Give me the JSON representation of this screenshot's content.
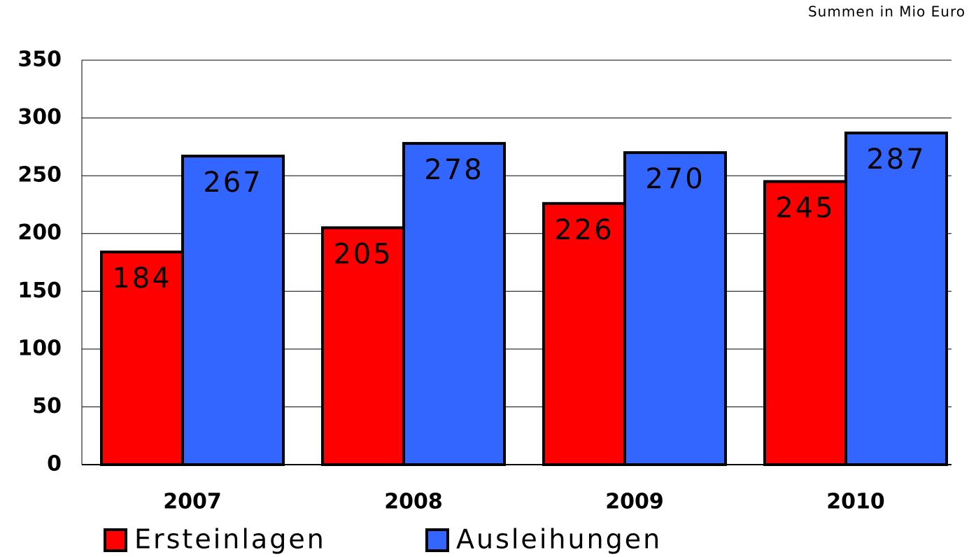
{
  "chart_data": {
    "type": "bar",
    "subtitle": "Summen in Mio Euro",
    "categories": [
      "2007",
      "2008",
      "2009",
      "2010"
    ],
    "series": [
      {
        "name": "Ersteinlagen",
        "color": "#ff0000",
        "values": [
          184,
          205,
          226,
          245
        ]
      },
      {
        "name": "Ausleihungen",
        "color": "#3366ff",
        "values": [
          267,
          278,
          270,
          287
        ]
      }
    ],
    "ylim": [
      0,
      350
    ],
    "yticks": [
      0,
      50,
      100,
      150,
      200,
      250,
      300,
      350
    ],
    "grid": true
  }
}
